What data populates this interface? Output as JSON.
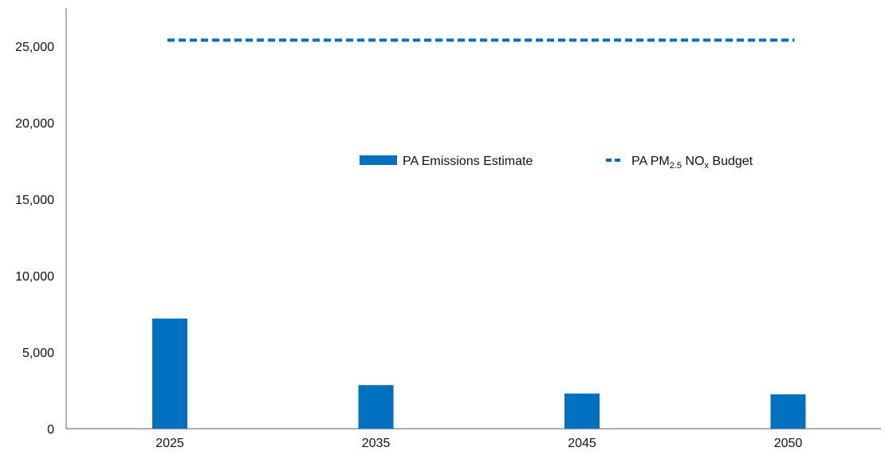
{
  "chart_data": {
    "type": "bar",
    "categories": [
      "2025",
      "2035",
      "2045",
      "2050"
    ],
    "series": [
      {
        "name": "PA Emissions Estimate",
        "kind": "bar",
        "color": "#0070C0",
        "values": [
          7200,
          2850,
          2300,
          2250
        ]
      },
      {
        "name": "PA PM2.5 NOx Budget",
        "kind": "line-dashed",
        "color": "#0070C0",
        "values": [
          25400,
          25400,
          25400,
          25400
        ]
      }
    ],
    "y_ticks": [
      "0",
      "5,000",
      "10,000",
      "15,000",
      "20,000",
      "25,000"
    ],
    "ylim": [
      0,
      27500
    ],
    "grid": false,
    "legend_position": "center-top"
  },
  "legend": {
    "bar_label": "PA Emissions Estimate",
    "line_label_parts": {
      "prefix": "PA PM",
      "sub1": "2.5",
      "mid": " NO",
      "sub2": "x",
      "suffix": " Budget"
    }
  }
}
